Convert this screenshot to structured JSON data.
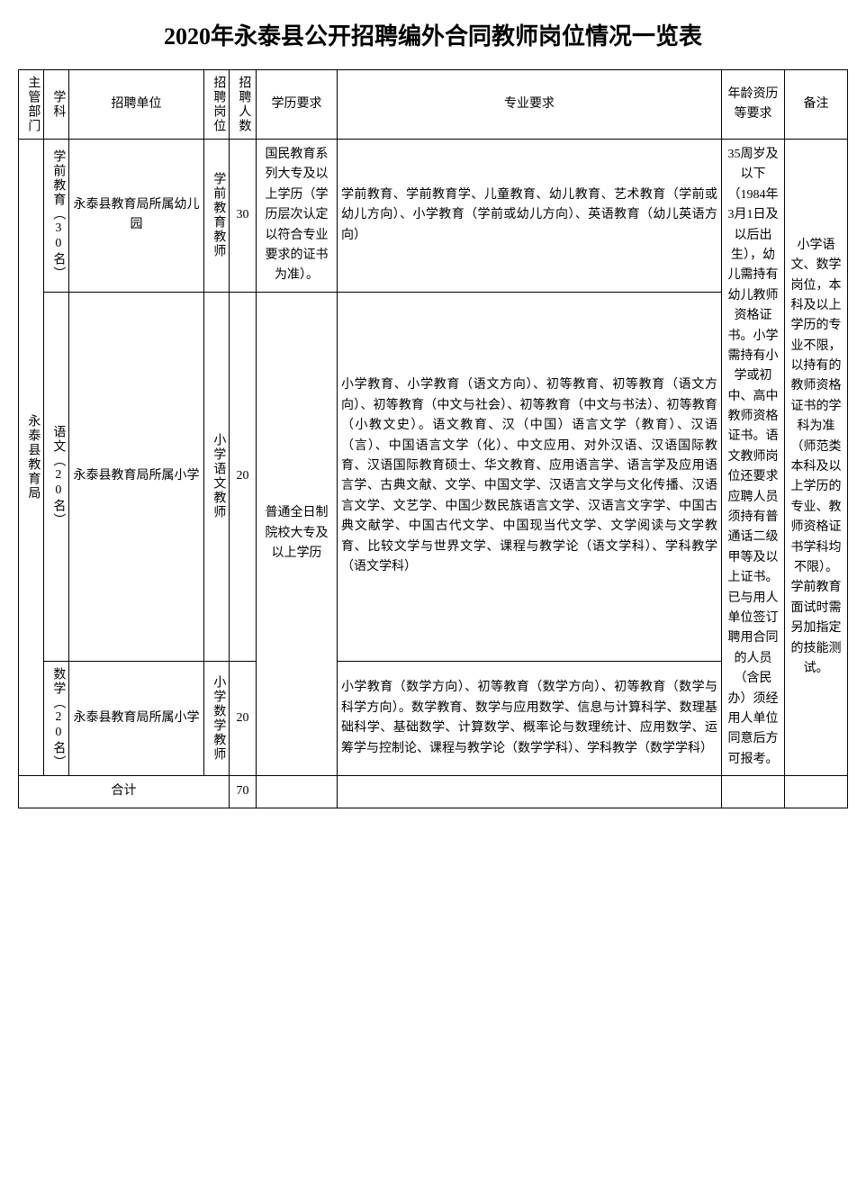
{
  "title": "2020年永泰县公开招聘编外合同教师岗位情况一览表",
  "headers": {
    "dept": "主管部门",
    "subject": "学科",
    "unit": "招聘单位",
    "position": "招聘岗位",
    "count": "招聘人数",
    "education": "学历要求",
    "major": "专业要求",
    "age": "年龄资历等要求",
    "note": "备注"
  },
  "dept_name": "永泰县教育局",
  "rows": [
    {
      "subject": "学前教育（30名）",
      "unit": "永泰县教育局所属幼儿园",
      "position": "学前教育教师",
      "count": "30",
      "education": "国民教育系列大专及以上学历（学历层次认定以符合专业要求的证书为准）。",
      "major": "学前教育、学前教育学、儿童教育、幼儿教育、艺术教育（学前或幼儿方向）、小学教育（学前或幼儿方向）、英语教育（幼儿英语方向）"
    },
    {
      "subject": "语文（20名）",
      "unit": "永泰县教育局所属小学",
      "position": "小学语文教师",
      "count": "20",
      "major": "小学教育、小学教育（语文方向）、初等教育、初等教育（语文方向）、初等教育（中文与社会）、初等教育（中文与书法）、初等教育（小教文史）。语文教育、汉（中国）语言文学（教育）、汉语（言）、中国语言文学（化）、中文应用、对外汉语、汉语国际教育、汉语国际教育硕士、华文教育、应用语言学、语言学及应用语言学、古典文献、文学、中国文学、汉语言文学与文化传播、汉语言文学、文艺学、中国少数民族语言文学、汉语言文字学、中国古典文献学、中国古代文学、中国现当代文学、文学阅读与文学教育、比较文学与世界文学、课程与教学论（语文学科）、学科教学（语文学科）"
    },
    {
      "subject": "数学（20名）",
      "unit": "永泰县教育局所属小学",
      "position": "小学数学教师",
      "count": "20",
      "major": "小学教育（数学方向）、初等教育（数学方向）、初等教育（数学与科学方向）。数学教育、数学与应用数学、信息与计算科学、数理基础科学、基础数学、计算数学、概率论与数理统计、应用数学、运筹学与控制论、课程与教学论（数学学科）、学科教学（数学学科）"
    }
  ],
  "education_shared": "普通全日制院校大专及以上学历",
  "age_requirement": "35周岁及以下（1984年3月1日及以后出生），幼儿需持有幼儿教师资格证书。小学需持有小学或初中、高中教师资格证书。语文教师岗位还要求应聘人员须持有普通话二级甲等及以上证书。已与用人单位签订聘用合同的人员（含民办）须经用人单位同意后方可报考。",
  "note_text": "小学语文、数学岗位，本科及以上学历的专业不限，以持有的教师资格证书的学科为准（师范类本科及以上学历的专业、教师资格证书学科均不限）。学前教育面试时需另加指定的技能测试。",
  "total_label": "合计",
  "total_count": "70"
}
